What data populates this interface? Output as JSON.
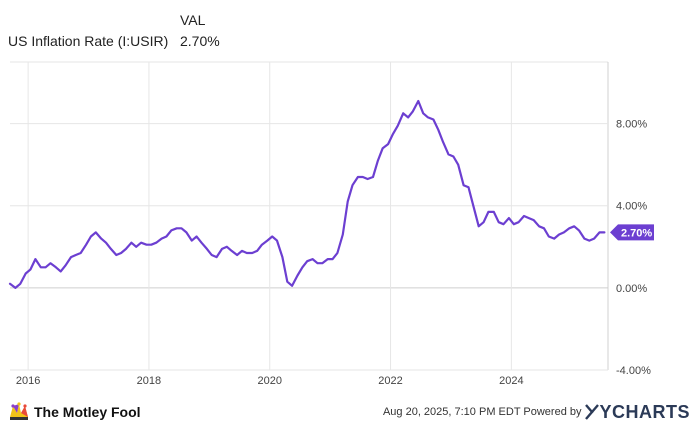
{
  "legend": {
    "column_header": "VAL",
    "series_name": "US Inflation Rate (I:USIR)",
    "series_value": "2.70%"
  },
  "footer": {
    "brand": "The Motley Fool",
    "stamp": "Aug 20, 2025, 7:10 PM EDT Powered by",
    "powered_brand": "YCHARTS"
  },
  "colors": {
    "line": "#6c3fd1",
    "grid": "#e6e6e6",
    "zero_line": "#cfcfcf",
    "label_box": "#6c3fd1"
  },
  "chart_data": {
    "type": "line",
    "title": "",
    "xlabel": "",
    "ylabel": "",
    "y_tick_labels": [
      "-4.00%",
      "0.00%",
      "4.00%",
      "8.00%"
    ],
    "y_ticks": [
      -4,
      0,
      4,
      8
    ],
    "x_tick_labels": [
      "2016",
      "2018",
      "2020",
      "2022",
      "2024"
    ],
    "x_ticks": [
      2016,
      2018,
      2020,
      2022,
      2024
    ],
    "xlim": [
      2015.7,
      2025.6
    ],
    "ylim": [
      -4,
      11
    ],
    "grid": true,
    "last_value_label": "2.70%",
    "series": [
      {
        "name": "US Inflation Rate (I:USIR)",
        "x": [
          2015.7,
          2015.79,
          2015.87,
          2015.96,
          2016.04,
          2016.12,
          2016.21,
          2016.29,
          2016.37,
          2016.46,
          2016.54,
          2016.62,
          2016.71,
          2016.79,
          2016.87,
          2016.96,
          2017.04,
          2017.12,
          2017.21,
          2017.29,
          2017.37,
          2017.46,
          2017.54,
          2017.62,
          2017.71,
          2017.79,
          2017.87,
          2017.96,
          2018.04,
          2018.12,
          2018.21,
          2018.29,
          2018.37,
          2018.46,
          2018.54,
          2018.62,
          2018.71,
          2018.79,
          2018.87,
          2018.96,
          2019.04,
          2019.12,
          2019.21,
          2019.29,
          2019.37,
          2019.46,
          2019.54,
          2019.62,
          2019.71,
          2019.79,
          2019.87,
          2019.96,
          2020.04,
          2020.12,
          2020.21,
          2020.29,
          2020.37,
          2020.46,
          2020.54,
          2020.62,
          2020.71,
          2020.79,
          2020.87,
          2020.96,
          2021.04,
          2021.12,
          2021.21,
          2021.29,
          2021.37,
          2021.46,
          2021.54,
          2021.62,
          2021.71,
          2021.79,
          2021.87,
          2021.96,
          2022.04,
          2022.12,
          2022.21,
          2022.29,
          2022.37,
          2022.46,
          2022.54,
          2022.62,
          2022.71,
          2022.79,
          2022.87,
          2022.96,
          2023.04,
          2023.12,
          2023.21,
          2023.29,
          2023.37,
          2023.46,
          2023.54,
          2023.62,
          2023.71,
          2023.79,
          2023.87,
          2023.96,
          2024.04,
          2024.12,
          2024.21,
          2024.29,
          2024.37,
          2024.46,
          2024.54,
          2024.62,
          2024.71,
          2024.79,
          2024.87,
          2024.96,
          2025.04,
          2025.12,
          2025.21,
          2025.29,
          2025.37,
          2025.46,
          2025.54
        ],
        "values": [
          0.2,
          0.0,
          0.2,
          0.7,
          0.9,
          1.4,
          1.0,
          1.0,
          1.2,
          1.0,
          0.8,
          1.1,
          1.5,
          1.6,
          1.7,
          2.1,
          2.5,
          2.7,
          2.4,
          2.2,
          1.9,
          1.6,
          1.7,
          1.9,
          2.2,
          2.0,
          2.2,
          2.1,
          2.1,
          2.2,
          2.4,
          2.5,
          2.8,
          2.9,
          2.9,
          2.7,
          2.3,
          2.5,
          2.2,
          1.9,
          1.6,
          1.5,
          1.9,
          2.0,
          1.8,
          1.6,
          1.8,
          1.7,
          1.7,
          1.8,
          2.1,
          2.3,
          2.5,
          2.3,
          1.5,
          0.3,
          0.1,
          0.6,
          1.0,
          1.3,
          1.4,
          1.2,
          1.2,
          1.4,
          1.4,
          1.7,
          2.6,
          4.2,
          5.0,
          5.4,
          5.4,
          5.3,
          5.4,
          6.2,
          6.8,
          7.0,
          7.5,
          7.9,
          8.5,
          8.3,
          8.6,
          9.1,
          8.5,
          8.3,
          8.2,
          7.7,
          7.1,
          6.5,
          6.4,
          6.0,
          5.0,
          4.9,
          4.0,
          3.0,
          3.2,
          3.7,
          3.7,
          3.2,
          3.1,
          3.4,
          3.1,
          3.2,
          3.5,
          3.4,
          3.3,
          3.0,
          2.9,
          2.5,
          2.4,
          2.6,
          2.7,
          2.9,
          3.0,
          2.8,
          2.4,
          2.3,
          2.4,
          2.7,
          2.7
        ]
      }
    ]
  }
}
